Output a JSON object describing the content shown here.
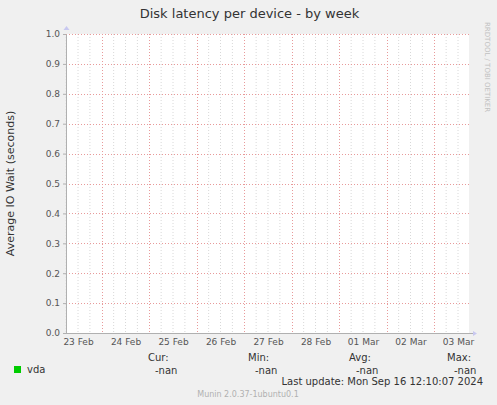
{
  "chart_data": {
    "type": "line",
    "title": "Disk latency per device - by week",
    "y_label": "Average IO Wait (seconds)",
    "categories": [
      "23 Feb",
      "24 Feb",
      "25 Feb",
      "26 Feb",
      "27 Feb",
      "28 Feb",
      "01 Mar",
      "02 Mar",
      "03 Mar"
    ],
    "series": [
      {
        "name": "vda",
        "color": "#00cc00",
        "values": [
          null,
          null,
          null,
          null,
          null,
          null,
          null,
          null,
          null
        ]
      }
    ],
    "ylim": [
      0,
      1
    ],
    "yticks": [
      {
        "value": 0,
        "label": "0.0"
      },
      0.1,
      0.2,
      0.3,
      0.4,
      0.5,
      0.6,
      0.7,
      0.8,
      0.9,
      {
        "value": 1,
        "label": "1.0"
      }
    ],
    "grid": true,
    "legend_stats": [
      {
        "label": "Cur:",
        "value": "-nan"
      },
      {
        "label": "Min:",
        "value": "-nan"
      },
      {
        "label": "Avg:",
        "value": "-nan"
      },
      {
        "label": "Max:",
        "value": "-nan"
      }
    ],
    "last_update": "Last update: Mon Sep 16 12:10:07 2024",
    "footer": "Munin 2.0.37-1ubuntu0.1",
    "watermark": "RRDTOOL / TOBI OETIKER"
  }
}
